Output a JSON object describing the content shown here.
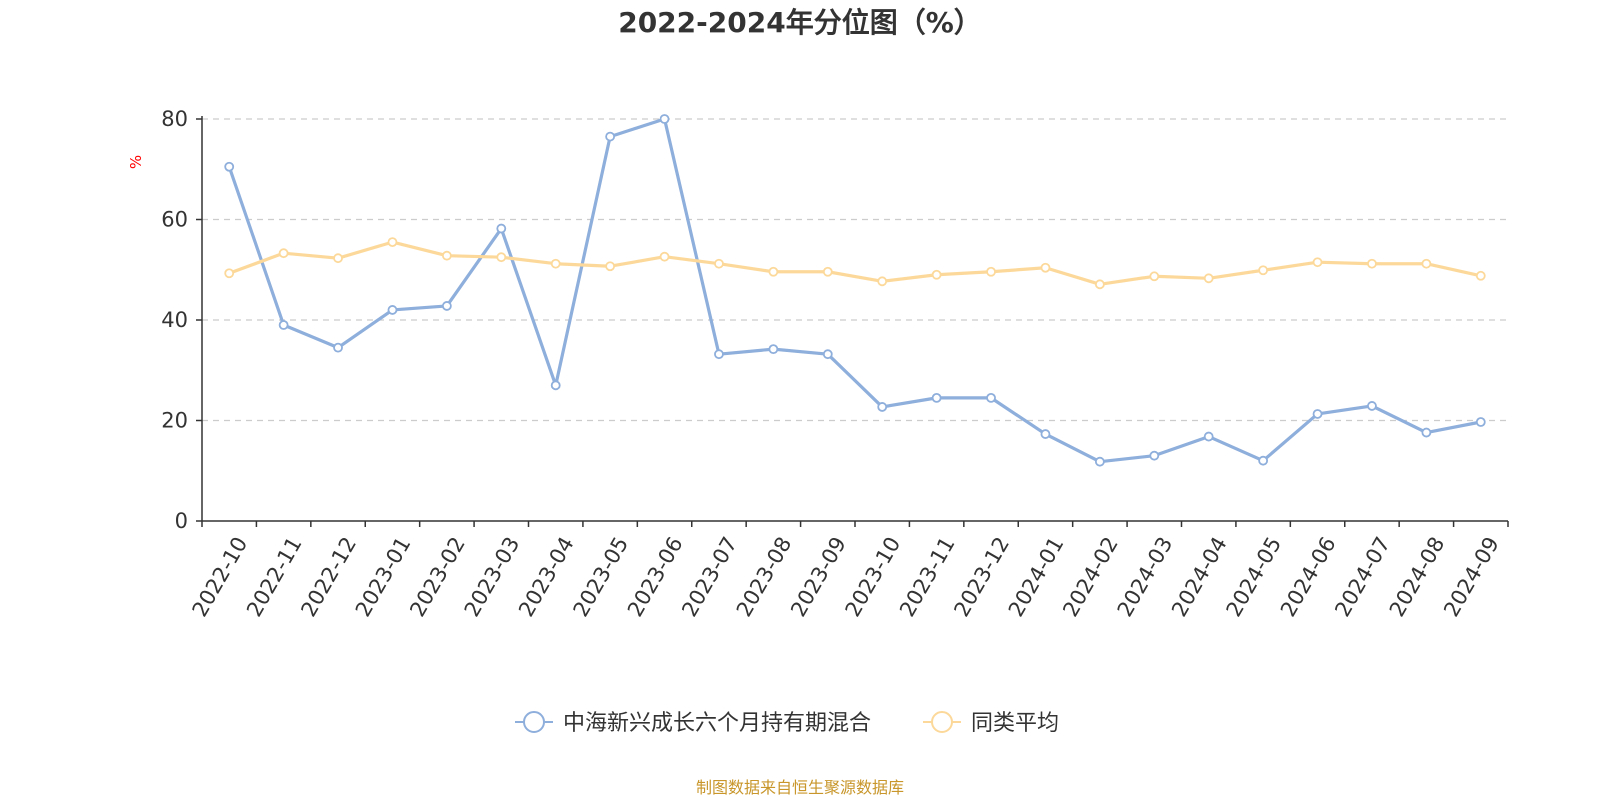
{
  "chart_data": {
    "type": "line",
    "title": "2022-2024年分位图（%）",
    "ylabel": "%",
    "xlabel": "",
    "ylim": [
      0,
      80
    ],
    "yticks": [
      0,
      20,
      40,
      60,
      80
    ],
    "grid": true,
    "legend_position": "bottom-center",
    "categories": [
      "2022-10",
      "2022-11",
      "2022-12",
      "2023-01",
      "2023-02",
      "2023-03",
      "2023-04",
      "2023-05",
      "2023-06",
      "2023-07",
      "2023-08",
      "2023-09",
      "2023-10",
      "2023-11",
      "2023-12",
      "2024-01",
      "2024-02",
      "2024-03",
      "2024-04",
      "2024-05",
      "2024-06",
      "2024-07",
      "2024-08",
      "2024-09"
    ],
    "series": [
      {
        "name": "中海新兴成长六个月持有期混合",
        "color": "#8eaedb",
        "values": [
          70.5,
          39,
          34.5,
          42,
          42.8,
          58.2,
          27,
          76.5,
          80,
          33.2,
          34.2,
          33.2,
          22.7,
          24.5,
          24.5,
          17.3,
          11.8,
          13,
          16.8,
          12,
          21.3,
          22.9,
          17.6,
          19.7
        ]
      },
      {
        "name": "同类平均",
        "color": "#fcd99a",
        "values": [
          49.3,
          53.3,
          52.3,
          55.5,
          52.8,
          52.5,
          51.2,
          50.7,
          52.6,
          51.2,
          49.6,
          49.6,
          47.7,
          49,
          49.6,
          50.4,
          47.1,
          48.7,
          48.3,
          49.9,
          51.5,
          51.2,
          51.2,
          48.8
        ]
      }
    ]
  },
  "source": "制图数据来自恒生聚源数据库",
  "colors": {
    "axis": "#333333",
    "grid": "#cccccc",
    "ylabel": "#ff0000",
    "source": "#c8962a"
  }
}
